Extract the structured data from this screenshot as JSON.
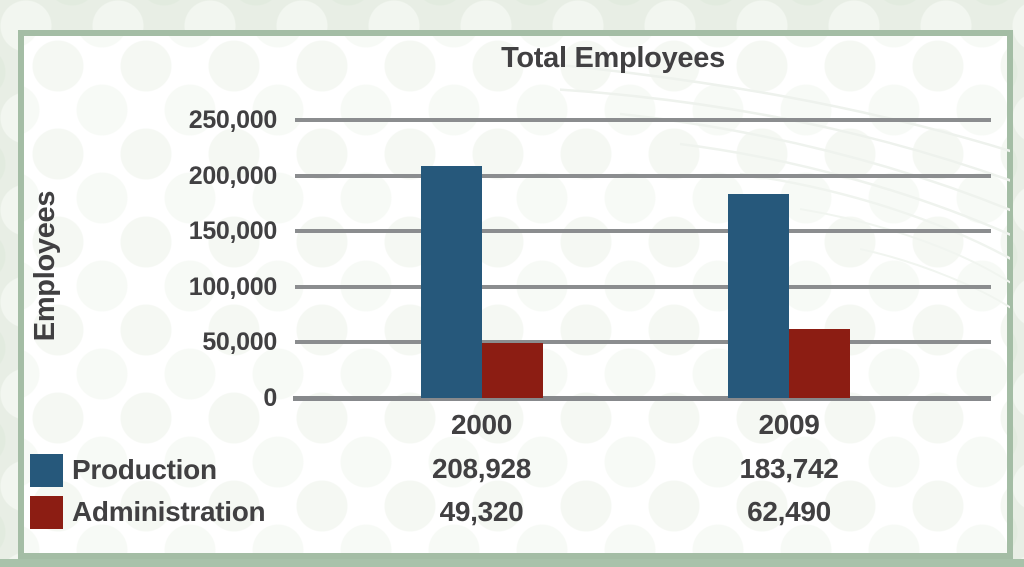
{
  "page": {
    "background_color": "#E8EEE5",
    "bottom_strip_color": "#A8C2AA"
  },
  "card": {
    "border_color": "#A4BDA5",
    "background_color": "#FFFFFF"
  },
  "chart_data": {
    "type": "bar",
    "title": "Total Employees",
    "xlabel": "",
    "ylabel": "Employees",
    "categories": [
      "2000",
      "2009"
    ],
    "series": [
      {
        "name": "Production",
        "color": "#26587B",
        "values": [
          208928,
          183742
        ],
        "value_labels": [
          "208,928",
          "183,742"
        ]
      },
      {
        "name": "Administration",
        "color": "#8C1D13",
        "values": [
          49320,
          62490
        ],
        "value_labels": [
          "49,320",
          "62,490"
        ]
      }
    ],
    "ylim": [
      0,
      250000
    ],
    "y_ticks": [
      {
        "value": 250000,
        "label": "250,000"
      },
      {
        "value": 200000,
        "label": "200,000"
      },
      {
        "value": 150000,
        "label": "150,000"
      },
      {
        "value": 100000,
        "label": "100,000"
      },
      {
        "value": 50000,
        "label": "50,000"
      },
      {
        "value": 0,
        "label": "0"
      }
    ],
    "grid": true,
    "legend_position": "bottom-left",
    "text_color": "#414042",
    "gridline_color": "#8B8D8F"
  }
}
